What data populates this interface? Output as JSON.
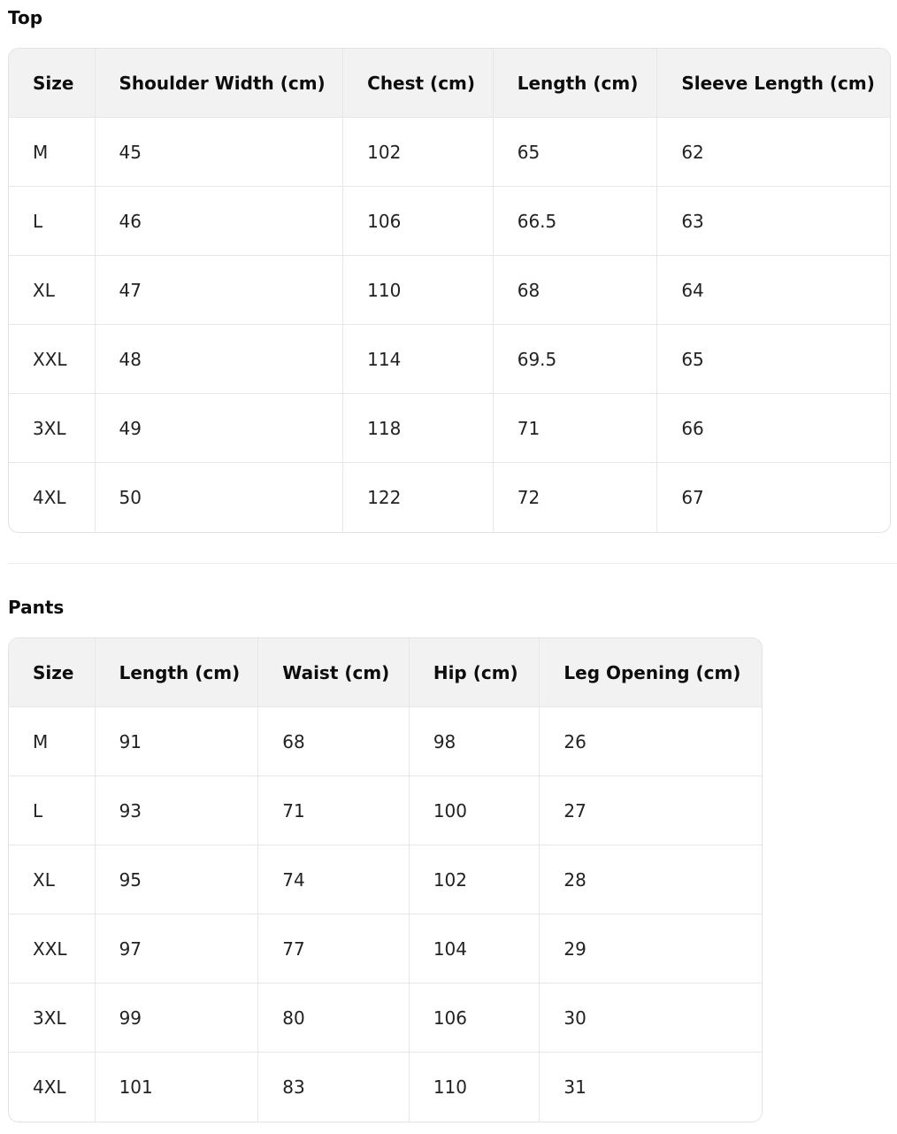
{
  "top": {
    "title": "Top",
    "headers": [
      "Size",
      "Shoulder Width (cm)",
      "Chest (cm)",
      "Length (cm)",
      "Sleeve Length (cm)"
    ],
    "rows": [
      [
        "M",
        "45",
        "102",
        "65",
        "62"
      ],
      [
        "L",
        "46",
        "106",
        "66.5",
        "63"
      ],
      [
        "XL",
        "47",
        "110",
        "68",
        "64"
      ],
      [
        "XXL",
        "48",
        "114",
        "69.5",
        "65"
      ],
      [
        "3XL",
        "49",
        "118",
        "71",
        "66"
      ],
      [
        "4XL",
        "50",
        "122",
        "72",
        "67"
      ]
    ]
  },
  "pants": {
    "title": "Pants",
    "headers": [
      "Size",
      "Length (cm)",
      "Waist (cm)",
      "Hip (cm)",
      "Leg Opening (cm)"
    ],
    "rows": [
      [
        "M",
        "91",
        "68",
        "98",
        "26"
      ],
      [
        "L",
        "93",
        "71",
        "100",
        "27"
      ],
      [
        "XL",
        "95",
        "74",
        "102",
        "28"
      ],
      [
        "XXL",
        "97",
        "77",
        "104",
        "29"
      ],
      [
        "3XL",
        "99",
        "80",
        "106",
        "30"
      ],
      [
        "4XL",
        "101",
        "83",
        "110",
        "31"
      ]
    ]
  }
}
